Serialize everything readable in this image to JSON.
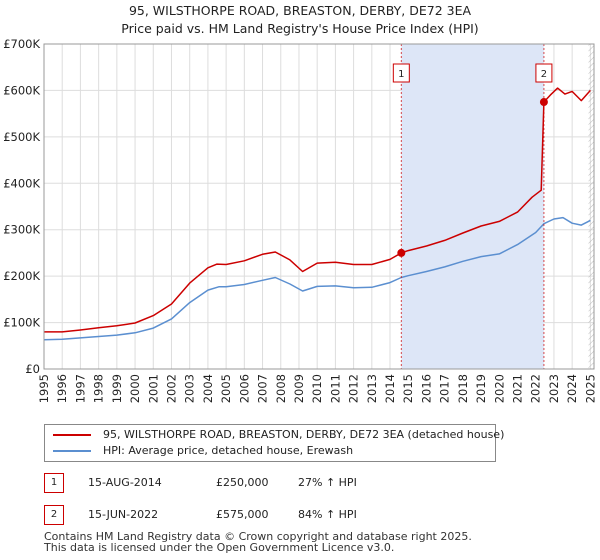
{
  "title_line1": "95, WILSTHORPE ROAD, BREASTON, DERBY, DE72 3EA",
  "title_line2": "Price paid vs. HM Land Registry's House Price Index (HPI)",
  "colors": {
    "property": "#cc0000",
    "hpi": "#5b8fd0",
    "shade": "#dde6f7",
    "grid": "#dddddd"
  },
  "chart_data": {
    "type": "line",
    "xlim": [
      1995,
      2025.2
    ],
    "ylim": [
      0,
      700000
    ],
    "y_ticks": [
      0,
      100000,
      200000,
      300000,
      400000,
      500000,
      600000,
      700000
    ],
    "y_tick_labels": [
      "£0",
      "£100K",
      "£200K",
      "£300K",
      "£400K",
      "£500K",
      "£600K",
      "£700K"
    ],
    "x_ticks": [
      1995,
      1996,
      1997,
      1998,
      1999,
      2000,
      2001,
      2002,
      2003,
      2004,
      2005,
      2006,
      2007,
      2008,
      2009,
      2010,
      2011,
      2012,
      2013,
      2014,
      2015,
      2016,
      2017,
      2018,
      2019,
      2020,
      2021,
      2022,
      2023,
      2024,
      2025
    ],
    "shaded_range": [
      2014.62,
      2022.45
    ],
    "hatched_from": 2024.9,
    "series": [
      {
        "name": "95, WILSTHORPE ROAD, BREASTON, DERBY, DE72 3EA (detached house)",
        "points": [
          [
            1995,
            80000
          ],
          [
            1996,
            80000
          ],
          [
            1997,
            84000
          ],
          [
            1998,
            89000
          ],
          [
            1999,
            93000
          ],
          [
            2000,
            99000
          ],
          [
            2001,
            115000
          ],
          [
            2002,
            140000
          ],
          [
            2003,
            185000
          ],
          [
            2004,
            218000
          ],
          [
            2004.5,
            226000
          ],
          [
            2005,
            225000
          ],
          [
            2006,
            233000
          ],
          [
            2007,
            247000
          ],
          [
            2007.7,
            252000
          ],
          [
            2008.5,
            235000
          ],
          [
            2009.2,
            210000
          ],
          [
            2010,
            228000
          ],
          [
            2011,
            230000
          ],
          [
            2012,
            225000
          ],
          [
            2013,
            225000
          ],
          [
            2014,
            236000
          ],
          [
            2014.62,
            250000
          ],
          [
            2015,
            255000
          ],
          [
            2016,
            265000
          ],
          [
            2017,
            277000
          ],
          [
            2018,
            293000
          ],
          [
            2019,
            308000
          ],
          [
            2020,
            318000
          ],
          [
            2021,
            338000
          ],
          [
            2021.8,
            370000
          ],
          [
            2022.3,
            385000
          ],
          [
            2022.45,
            575000
          ],
          [
            2022.8,
            590000
          ],
          [
            2023.2,
            605000
          ],
          [
            2023.6,
            592000
          ],
          [
            2024,
            598000
          ],
          [
            2024.5,
            578000
          ],
          [
            2025,
            600000
          ]
        ]
      },
      {
        "name": "HPI: Average price, detached house, Erewash",
        "points": [
          [
            1995,
            63000
          ],
          [
            1996,
            64000
          ],
          [
            1997,
            67000
          ],
          [
            1998,
            70000
          ],
          [
            1999,
            73000
          ],
          [
            2000,
            78000
          ],
          [
            2001,
            88000
          ],
          [
            2002,
            108000
          ],
          [
            2003,
            143000
          ],
          [
            2004,
            170000
          ],
          [
            2004.6,
            177000
          ],
          [
            2005,
            177000
          ],
          [
            2006,
            182000
          ],
          [
            2007,
            191000
          ],
          [
            2007.7,
            197000
          ],
          [
            2008.5,
            183000
          ],
          [
            2009.2,
            168000
          ],
          [
            2010,
            178000
          ],
          [
            2011,
            179000
          ],
          [
            2012,
            175000
          ],
          [
            2013,
            176000
          ],
          [
            2014,
            186000
          ],
          [
            2014.62,
            197000
          ],
          [
            2015,
            201000
          ],
          [
            2016,
            210000
          ],
          [
            2017,
            220000
          ],
          [
            2018,
            232000
          ],
          [
            2019,
            242000
          ],
          [
            2020,
            248000
          ],
          [
            2021,
            268000
          ],
          [
            2022,
            294000
          ],
          [
            2022.45,
            313000
          ],
          [
            2023,
            323000
          ],
          [
            2023.5,
            326000
          ],
          [
            2024,
            314000
          ],
          [
            2024.5,
            310000
          ],
          [
            2025,
            320000
          ]
        ]
      }
    ],
    "markers": [
      {
        "label": "1",
        "x": 2014.62,
        "y": 250000
      },
      {
        "label": "2",
        "x": 2022.45,
        "y": 575000
      }
    ]
  },
  "legend": {
    "property_label": "95, WILSTHORPE ROAD, BREASTON, DERBY, DE72 3EA (detached house)",
    "hpi_label": "HPI: Average price, detached house, Erewash"
  },
  "sales": [
    {
      "num": "1",
      "date": "15-AUG-2014",
      "price": "£250,000",
      "hpi": "27% ↑ HPI"
    },
    {
      "num": "2",
      "date": "15-JUN-2022",
      "price": "£575,000",
      "hpi": "84% ↑ HPI"
    }
  ],
  "footer": {
    "line1": "Contains HM Land Registry data © Crown copyright and database right 2025.",
    "line2": "This data is licensed under the Open Government Licence v3.0."
  }
}
